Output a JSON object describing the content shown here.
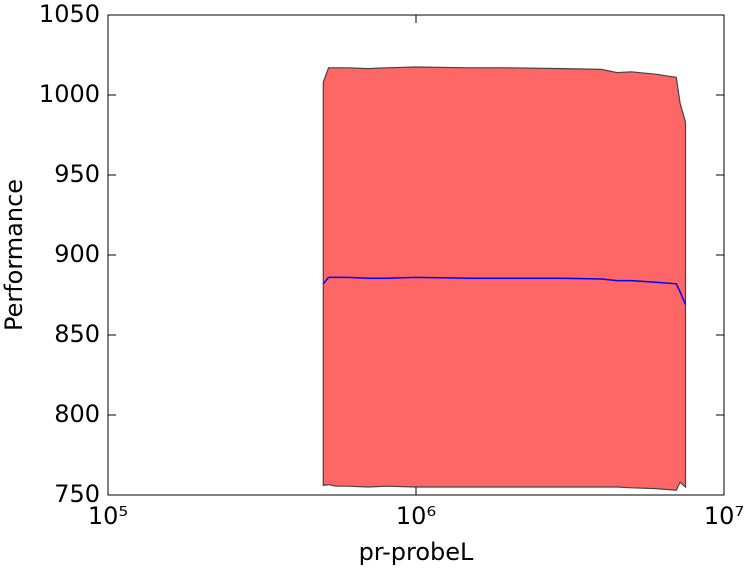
{
  "chart_data": {
    "type": "line",
    "xlabel": "pr-probeL",
    "ylabel": "Performance",
    "x_scale": "log",
    "x": [
      500000,
      520000,
      550000,
      600000,
      700000,
      800000,
      1000000,
      1500000,
      2000000,
      3000000,
      4000000,
      4500000,
      5000000,
      6000000,
      7000000,
      7200000,
      7500000
    ],
    "values": [
      882,
      886,
      886,
      886,
      885.5,
      885.5,
      886,
      885.5,
      885.5,
      885.5,
      885,
      884,
      884,
      883,
      882,
      877,
      869
    ],
    "upper": [
      1008,
      1017,
      1017,
      1017,
      1016.5,
      1017,
      1017.5,
      1017,
      1017,
      1016.5,
      1016,
      1014,
      1014.5,
      1013,
      1011,
      995,
      983
    ],
    "lower": [
      756,
      756.5,
      755.5,
      755.5,
      755,
      755.5,
      755,
      755,
      755,
      755,
      755,
      755,
      754.5,
      754,
      753,
      758,
      755
    ],
    "line_color": "#0000ff",
    "fill_color": "#ff6666",
    "edge_color": "#444444",
    "xlim": [
      100000,
      10000000
    ],
    "xticks": [
      {
        "value": 100000,
        "label": "10⁵"
      },
      {
        "value": 1000000,
        "label": "10⁶"
      },
      {
        "value": 10000000,
        "label": "10⁷"
      }
    ],
    "ylim": [
      750,
      1050
    ],
    "yticks": [
      750,
      800,
      850,
      900,
      950,
      1000,
      1050
    ]
  }
}
